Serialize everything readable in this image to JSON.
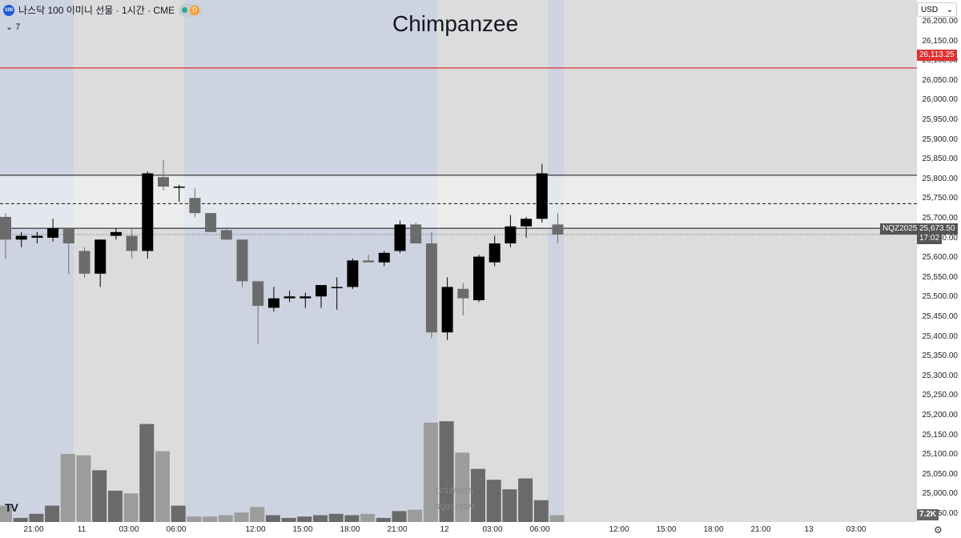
{
  "header": {
    "logo_text": "100",
    "symbol_title": "나스닥 100 이미니 선물 · 1시간 · CME",
    "status_badge": "D",
    "indicator_count": "7"
  },
  "watermark": "Chimpanzee",
  "info": {
    "date": "11/12/2025",
    "symbol_tf": "NQ1! | 60M"
  },
  "currency": "USD",
  "price_axis": {
    "ticks": [
      "26,200.00",
      "26,150.00",
      "26,100.00",
      "26,050.00",
      "26,000.00",
      "25,950.00",
      "25,900.00",
      "25,850.00",
      "25,800.00",
      "25,750.00",
      "25,700.00",
      "25,650.00",
      "25,600.00",
      "25,550.00",
      "25,500.00",
      "25,450.00",
      "25,400.00",
      "25,350.00",
      "25,300.00",
      "25,250.00",
      "25,200.00",
      "25,150.00",
      "25,100.00",
      "25,050.00",
      "25,000.00",
      "24,950.00"
    ],
    "red_line_label": "26,113.25",
    "last_price_symbol": "NQZ2025",
    "last_price": "25,673.50",
    "countdown": "17:02",
    "volume_label": "7.2K"
  },
  "time_axis": [
    "21:00",
    "11",
    "03:00",
    "06:00",
    "12:00",
    "15:00",
    "18:00",
    "21:00",
    "12",
    "03:00",
    "06:00",
    "12:00",
    "15:00",
    "18:00",
    "21:00",
    "13",
    "03:00"
  ],
  "colors": {
    "up": "#000000",
    "down": "#6b6b6b",
    "session_blue": "#cdd3e0",
    "session_gray": "#dcdcdc",
    "red_line": "#e03030"
  },
  "chart_data": {
    "type": "candlestick",
    "interval": "1h",
    "y_range": [
      24925,
      26225
    ],
    "levels": {
      "red": 26113.25,
      "upper": 25830,
      "mid_dashed": 25755,
      "lower": 25690,
      "last": 25673.5
    },
    "candles": [
      {
        "o": 25720,
        "h": 25730,
        "l": 25610,
        "c": 25660
      },
      {
        "o": 25660,
        "h": 25680,
        "l": 25640,
        "c": 25670
      },
      {
        "o": 25665,
        "h": 25680,
        "l": 25650,
        "c": 25670
      },
      {
        "o": 25665,
        "h": 25715,
        "l": 25655,
        "c": 25690
      },
      {
        "o": 25690,
        "h": 25690,
        "l": 25570,
        "c": 25650
      },
      {
        "o": 25630,
        "h": 25640,
        "l": 25560,
        "c": 25570
      },
      {
        "o": 25570,
        "h": 25660,
        "l": 25535,
        "c": 25660
      },
      {
        "o": 25670,
        "h": 25690,
        "l": 25660,
        "c": 25680
      },
      {
        "o": 25670,
        "h": 25690,
        "l": 25610,
        "c": 25630
      },
      {
        "o": 25630,
        "h": 25840,
        "l": 25610,
        "c": 25835
      },
      {
        "o": 25825,
        "h": 25870,
        "l": 25790,
        "c": 25800
      },
      {
        "o": 25800,
        "h": 25805,
        "l": 25760,
        "c": 25800
      },
      {
        "o": 25770,
        "h": 25795,
        "l": 25720,
        "c": 25730
      },
      {
        "o": 25730,
        "h": 25730,
        "l": 25680,
        "c": 25680
      },
      {
        "o": 25685,
        "h": 25690,
        "l": 25660,
        "c": 25660
      },
      {
        "o": 25660,
        "h": 25660,
        "l": 25535,
        "c": 25550
      },
      {
        "o": 25550,
        "h": 25550,
        "l": 25385,
        "c": 25485
      },
      {
        "o": 25480,
        "h": 25535,
        "l": 25470,
        "c": 25505
      },
      {
        "o": 25505,
        "h": 25525,
        "l": 25495,
        "c": 25510
      },
      {
        "o": 25505,
        "h": 25520,
        "l": 25480,
        "c": 25510
      },
      {
        "o": 25510,
        "h": 25535,
        "l": 25480,
        "c": 25540
      },
      {
        "o": 25535,
        "h": 25560,
        "l": 25475,
        "c": 25535
      },
      {
        "o": 25535,
        "h": 25610,
        "l": 25530,
        "c": 25605
      },
      {
        "o": 25605,
        "h": 25620,
        "l": 25600,
        "c": 25600
      },
      {
        "o": 25600,
        "h": 25630,
        "l": 25590,
        "c": 25625
      },
      {
        "o": 25630,
        "h": 25710,
        "l": 25625,
        "c": 25700
      },
      {
        "o": 25700,
        "h": 25705,
        "l": 25650,
        "c": 25650
      },
      {
        "o": 25650,
        "h": 25680,
        "l": 25400,
        "c": 25415
      },
      {
        "o": 25415,
        "h": 25560,
        "l": 25395,
        "c": 25535
      },
      {
        "o": 25530,
        "h": 25545,
        "l": 25460,
        "c": 25505
      },
      {
        "o": 25500,
        "h": 25620,
        "l": 25495,
        "c": 25615
      },
      {
        "o": 25600,
        "h": 25670,
        "l": 25590,
        "c": 25650
      },
      {
        "o": 25650,
        "h": 25725,
        "l": 25640,
        "c": 25695
      },
      {
        "o": 25695,
        "h": 25720,
        "l": 25665,
        "c": 25715
      },
      {
        "o": 25715,
        "h": 25860,
        "l": 25705,
        "c": 25835
      },
      {
        "o": 25700,
        "h": 25730,
        "l": 25650,
        "c": 25673.5
      }
    ],
    "volume": [
      0.12,
      0.03,
      0.06,
      0.12,
      0.5,
      0.49,
      0.38,
      0.23,
      0.21,
      0.72,
      0.52,
      0.12,
      0.04,
      0.04,
      0.05,
      0.07,
      0.11,
      0.05,
      0.03,
      0.04,
      0.05,
      0.06,
      0.05,
      0.06,
      0.03,
      0.08,
      0.09,
      0.73,
      0.74,
      0.51,
      0.39,
      0.31,
      0.24,
      0.32,
      0.16,
      0.05
    ],
    "volume_max_label": "7.2K"
  }
}
